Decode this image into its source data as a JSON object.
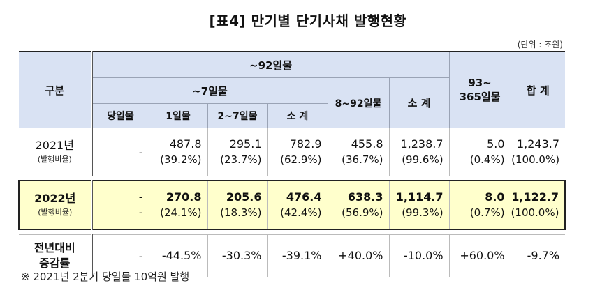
{
  "title": "[표4] 만기별 단기사채 발행현황",
  "unit": "(단위 : 조원)",
  "headers": {
    "gubun": "구분",
    "upto92": "~92일물",
    "upto7": "~7일물",
    "sameday": "당일물",
    "day1": "1일물",
    "day2to7": "2~7일물",
    "subtotal7": "소 계",
    "day8to92": "8~92일물",
    "subtotal92": "소 계",
    "day93to365_line1": "93~",
    "day93to365_line2": "365일물",
    "total": "합 계"
  },
  "rows": [
    {
      "label": "2021년",
      "sublabel": "(발행비율)",
      "sameday": "-",
      "day1": "487.8",
      "day1_pct": "(39.2%)",
      "day2to7": "295.1",
      "day2to7_pct": "(23.7%)",
      "subtotal7": "782.9",
      "subtotal7_pct": "(62.9%)",
      "day8to92": "455.8",
      "day8to92_pct": "(36.7%)",
      "subtotal92": "1,238.7",
      "subtotal92_pct": "(99.6%)",
      "day93to365": "5.0",
      "day93to365_pct": "(0.4%)",
      "total": "1,243.7",
      "total_pct": "(100.0%)"
    },
    {
      "label": "2022년",
      "sublabel": "(발행비율)",
      "sameday": "-",
      "sameday_pct": "-",
      "day1": "270.8",
      "day1_pct": "(24.1%)",
      "day2to7": "205.6",
      "day2to7_pct": "(18.3%)",
      "subtotal7": "476.4",
      "subtotal7_pct": "(42.4%)",
      "day8to92": "638.3",
      "day8to92_pct": "(56.9%)",
      "subtotal92": "1,114.7",
      "subtotal92_pct": "(99.3%)",
      "day93to365": "8.0",
      "day93to365_pct": "(0.7%)",
      "total": "1,122.7",
      "total_pct": "(100.0%)"
    },
    {
      "label_line1": "전년대비",
      "label_line2": "증감률",
      "sameday": "-",
      "day1": "-44.5%",
      "day2to7": "-30.3%",
      "subtotal7": "-39.1%",
      "day8to92": "+40.0%",
      "subtotal92": "-10.0%",
      "day93to365": "+60.0%",
      "total": "-9.7%"
    }
  ],
  "note": "※  2021년 2분기 당일물 10억원 발행"
}
